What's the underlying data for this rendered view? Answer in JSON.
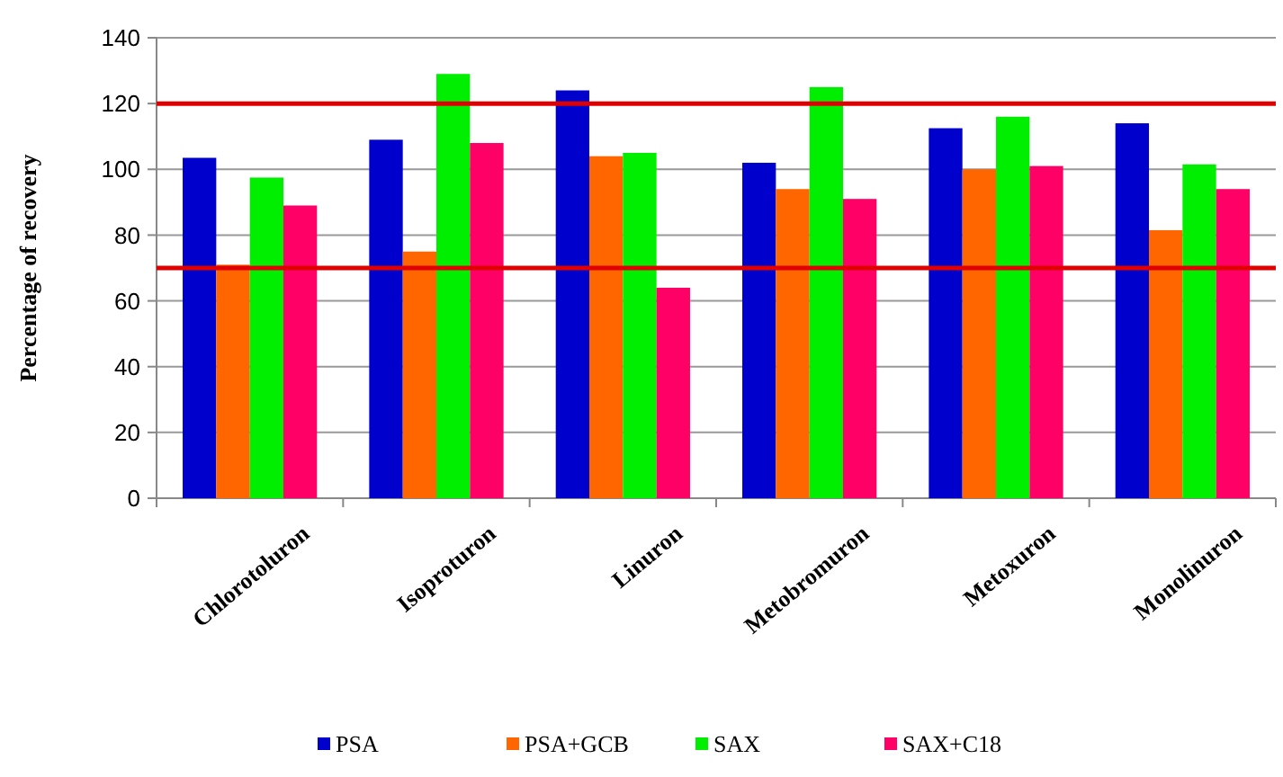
{
  "chart_data": {
    "type": "bar",
    "ylabel": "Percentage of recovery",
    "categories": [
      "Chlorotoluron",
      "Isoproturon",
      "Linuron",
      "Metobromuron",
      "Metoxuron",
      "Monolinuron"
    ],
    "series": [
      {
        "name": "PSA",
        "color": "#0000cc",
        "values": [
          103.5,
          109,
          124,
          102,
          112.5,
          114
        ]
      },
      {
        "name": "PSA+GCB",
        "color": "#ff6600",
        "values": [
          71,
          75,
          104,
          94,
          100,
          81.5
        ]
      },
      {
        "name": "SAX",
        "color": "#00ee00",
        "values": [
          97.5,
          129,
          105,
          125,
          116,
          101.5
        ]
      },
      {
        "name": "SAX+C18",
        "color": "#ff0066",
        "values": [
          89,
          108,
          64,
          91,
          101,
          94
        ]
      }
    ],
    "ylim": [
      0,
      140
    ],
    "yticks": [
      0,
      20,
      40,
      60,
      80,
      100,
      120,
      140
    ],
    "grid": "y",
    "legend": "bottom",
    "ref_lines": [
      {
        "axis": "y",
        "value": 120,
        "color": "#e00000"
      },
      {
        "axis": "y",
        "value": 70,
        "color": "#e00000"
      }
    ]
  }
}
